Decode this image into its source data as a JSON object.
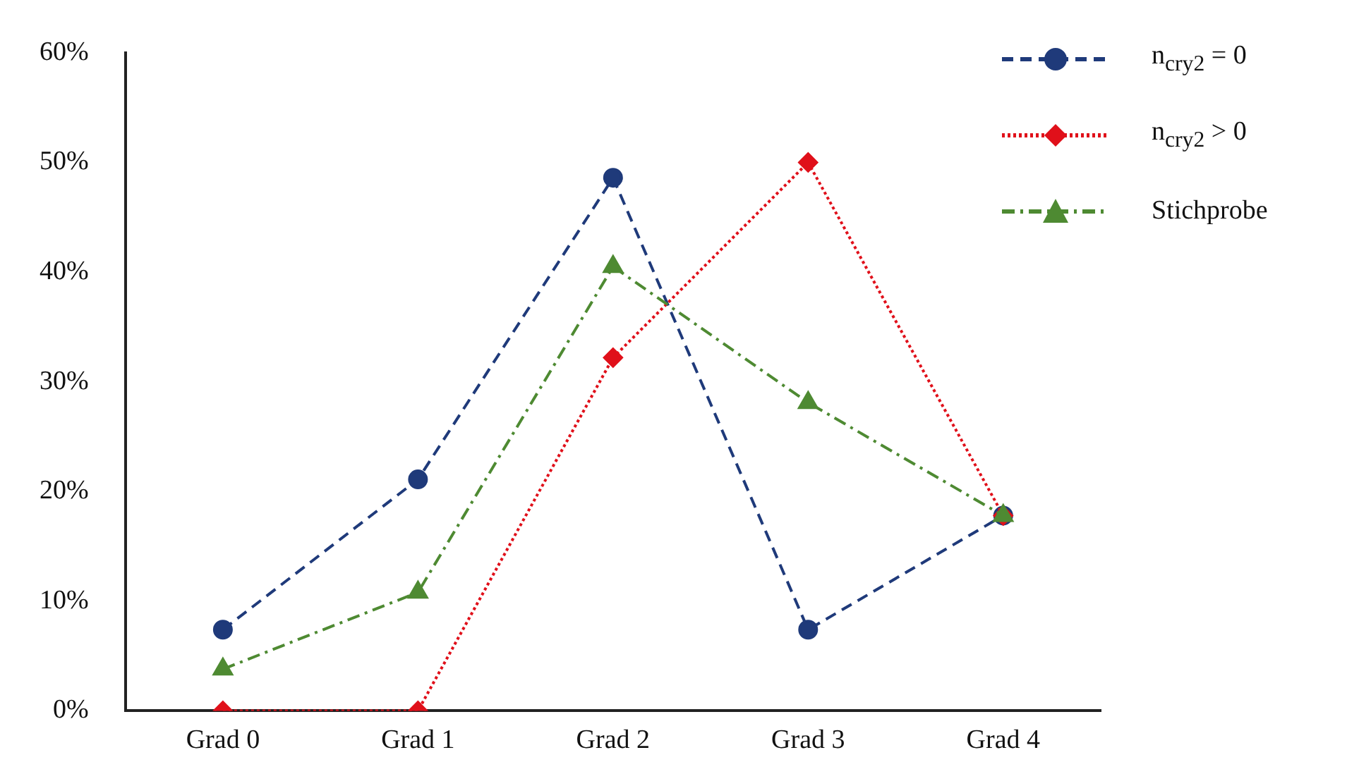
{
  "chart_data": {
    "type": "line",
    "categories": [
      "Grad 0",
      "Grad 1",
      "Grad 2",
      "Grad 3",
      "Grad 4"
    ],
    "ylim": [
      0,
      60
    ],
    "yticks": [
      {
        "value": 0,
        "label": "0%"
      },
      {
        "value": 10,
        "label": "10%"
      },
      {
        "value": 20,
        "label": "20%"
      },
      {
        "value": 30,
        "label": "30%"
      },
      {
        "value": 40,
        "label": "40%"
      },
      {
        "value": 50,
        "label": "50%"
      },
      {
        "value": 60,
        "label": "60%"
      }
    ],
    "grid": false,
    "legend": "top right",
    "series": [
      {
        "name": "n$_{cry2}$ = 0",
        "color": "#1f3a7a",
        "marker": "circle",
        "line_style": "dashed",
        "values": [
          7.4,
          21.1,
          48.6,
          7.4,
          17.8
        ]
      },
      {
        "name": "n$_{cry2}$ > 0",
        "color": "#e0101a",
        "marker": "diamond",
        "line_style": "dotted",
        "values": [
          0,
          0,
          32.2,
          50,
          17.8
        ]
      },
      {
        "name": "Stichprobe",
        "color": "#4e8a32",
        "marker": "triangle",
        "line_style": "dashdot",
        "values": [
          3.8,
          10.8,
          40.5,
          28.1,
          17.8
        ]
      }
    ]
  }
}
